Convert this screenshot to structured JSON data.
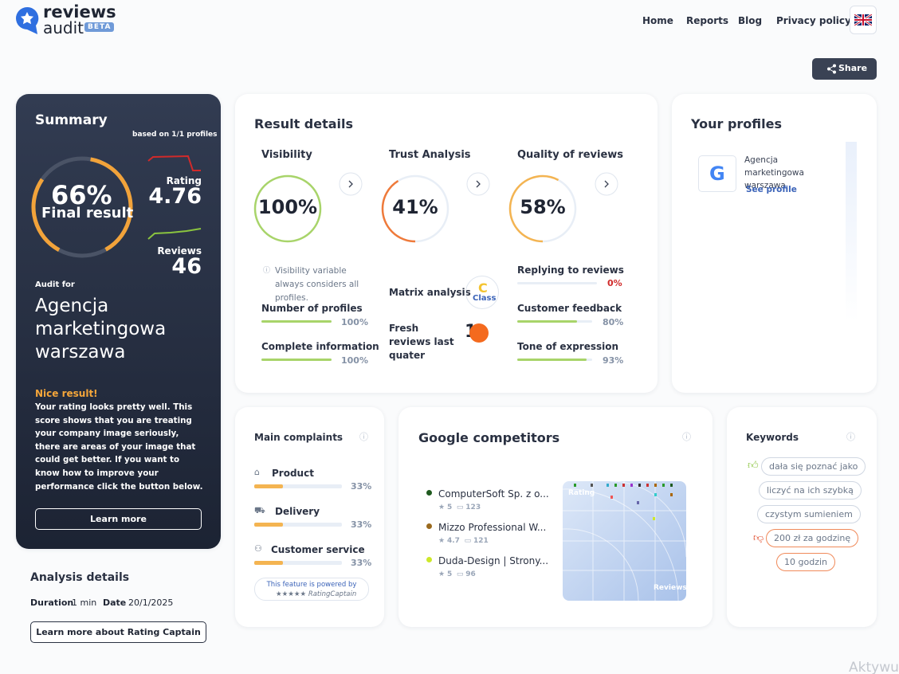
{
  "header": {
    "logo_line1": "reviews",
    "logo_line2": "audit",
    "badge": "BETA",
    "nav": [
      "Home",
      "Reports",
      "Blog",
      "Privacy policy"
    ]
  },
  "share": "Share",
  "summary": {
    "title": "Summary",
    "based_on": "based on 1/1 profiles",
    "score": "66%",
    "score_label": "Final result",
    "rating_label": "Rating",
    "rating": "4.76",
    "reviews_label": "Reviews",
    "reviews": "46",
    "audit_for": "Audit for",
    "company": "Agencja marketingowa warszawa",
    "nice": "Nice result!",
    "text": "Your rating looks pretty well. This score shows that you are treating your company image seriously, there are areas of your image that could get better. If you want to know how to improve your performance click the button below.",
    "button": "Learn more"
  },
  "analysis": {
    "title": "Analysis details",
    "duration_label": "Duration",
    "duration": "1 min",
    "date_label": "Date",
    "date": "20/1/2025",
    "button": "Learn more about Rating Captain"
  },
  "result_details": {
    "title": "Result details",
    "columns": [
      {
        "title": "Visibility",
        "value": "100%"
      },
      {
        "title": "Trust Analysis",
        "value": "41%"
      },
      {
        "title": "Quality of reviews",
        "value": "58%"
      }
    ],
    "visibility_note": "Visibility variable always considers all profiles.",
    "visibility_items": [
      {
        "label": "Number of profiles",
        "value": "100%"
      },
      {
        "label": "Complete information",
        "value": "100%"
      }
    ],
    "matrix_label": "Matrix analysis",
    "matrix_class": "C",
    "matrix_class_label": "Class",
    "fresh_label": "Fresh reviews last quater",
    "fresh_value": "1",
    "quality_items": [
      {
        "label": "Replying to reviews",
        "value": "0%"
      },
      {
        "label": "Customer feedback",
        "value": "80%"
      },
      {
        "label": "Tone of expression",
        "value": "93%"
      }
    ]
  },
  "profiles": {
    "title": "Your profiles",
    "items": [
      {
        "name": "Agencja marketingowa warszawa",
        "link": "See profile"
      }
    ]
  },
  "complaints": {
    "title": "Main complaints",
    "items": [
      {
        "label": "Product",
        "value": "33%"
      },
      {
        "label": "Delivery",
        "value": "33%"
      },
      {
        "label": "Customer service",
        "value": "33%"
      }
    ],
    "powered": "This feature is powered by",
    "powered_brand": "RatingCaptain"
  },
  "competitors": {
    "title": "Google competitors",
    "items": [
      {
        "name": "ComputerSoft Sp. z o...",
        "rating": "5",
        "reviews": "123"
      },
      {
        "name": "Mizzo Professional W...",
        "rating": "4.7",
        "reviews": "121"
      },
      {
        "name": "Duda-Design | Strony...",
        "rating": "5",
        "reviews": "96"
      }
    ],
    "chart_y": "Rating",
    "chart_x": "Reviews"
  },
  "keywords": {
    "title": "Keywords",
    "items": [
      "dała się poznać jako",
      "liczyć na ich szybką",
      "czystym sumieniem",
      "200 zł za godzinę",
      "10 godzin"
    ]
  },
  "watermark": "Aktywu"
}
